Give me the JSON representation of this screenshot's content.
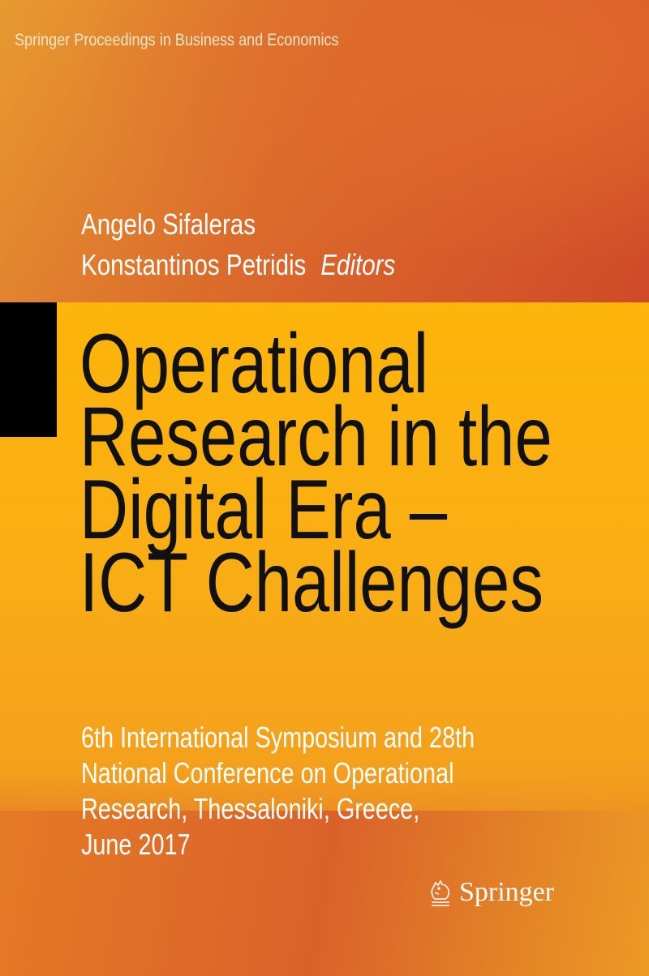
{
  "series": "Springer Proceedings in Business and Economics",
  "editors": [
    "Angelo Sifaleras",
    "Konstantinos Petridis"
  ],
  "editors_label": "Editors",
  "title_lines": [
    "Operational",
    "Research in the",
    "Digital Era –",
    "ICT Challenges"
  ],
  "subtitle_lines": [
    "6th International Symposium and 28th",
    "National Conference on Operational",
    "Research, Thessaloniki, Greece,",
    "June 2017"
  ],
  "publisher": "Springer",
  "colors": {
    "band": "#fcb50a",
    "orange": "#d9622a",
    "block": "#000000"
  }
}
